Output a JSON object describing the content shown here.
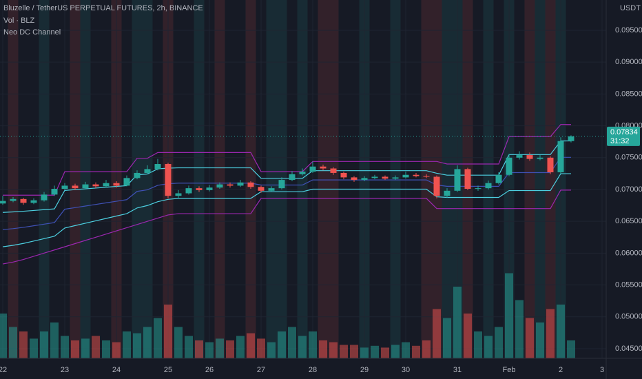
{
  "chart_data": {
    "type": "candlestick",
    "title": "Bluzelle / TetherUS PERPETUAL FUTURES, 2h, BINANCE",
    "indicators": [
      "Vol · BLZ",
      "Neo DC Channel"
    ],
    "y_axis_label": "USDT",
    "up_color": "#26a69a",
    "down_color": "#ef5350",
    "grid": true,
    "categories": [
      "22",
      null,
      null,
      null,
      null,
      null,
      "23",
      null,
      null,
      null,
      null,
      "24",
      null,
      null,
      null,
      null,
      "25",
      null,
      null,
      null,
      "26",
      null,
      null,
      null,
      null,
      "27",
      null,
      null,
      null,
      null,
      "28",
      null,
      null,
      null,
      null,
      "29",
      null,
      null,
      null,
      "30",
      null,
      null,
      null,
      null,
      "31",
      null,
      null,
      null,
      null,
      "Feb",
      null,
      null,
      null,
      null,
      "2",
      null,
      null,
      null,
      "3"
    ],
    "open": [
      0.0678,
      0.0682,
      0.0685,
      0.0679,
      0.0683,
      0.0692,
      0.0701,
      0.0706,
      0.0702,
      0.0708,
      0.0705,
      0.071,
      0.0706,
      0.0718,
      0.0726,
      0.0732,
      0.074,
      0.069,
      0.0694,
      0.0702,
      0.0699,
      0.0703,
      0.0708,
      0.0706,
      0.0711,
      0.0704,
      0.0698,
      0.0702,
      0.0715,
      0.0724,
      0.0728,
      0.0736,
      0.0733,
      0.0726,
      0.0719,
      0.0715,
      0.0718,
      0.072,
      0.0717,
      0.0719,
      0.0723,
      0.0721,
      0.072,
      0.069,
      0.0698,
      0.0732,
      0.0701,
      0.0702,
      0.071,
      0.0723,
      0.075,
      0.0754,
      0.0748,
      0.075,
      0.0727,
      0.0776,
      null,
      null,
      null
    ],
    "high": [
      0.069,
      0.0688,
      0.0687,
      0.0686,
      0.0696,
      0.0706,
      0.071,
      0.0709,
      0.0712,
      0.0711,
      0.0715,
      0.0713,
      0.0722,
      0.073,
      0.0738,
      0.0748,
      0.0742,
      0.0699,
      0.0706,
      0.0705,
      0.0707,
      0.0711,
      0.0711,
      0.0715,
      0.0713,
      0.0706,
      0.0705,
      0.0719,
      0.0729,
      0.0733,
      0.0744,
      0.0739,
      0.0735,
      0.0728,
      0.0721,
      0.0721,
      0.0723,
      0.0722,
      0.0722,
      0.0728,
      0.0726,
      0.0724,
      0.0722,
      0.0702,
      0.0738,
      0.0734,
      0.0706,
      0.0714,
      0.0727,
      0.0756,
      0.076,
      0.0758,
      0.0754,
      0.0752,
      0.0782,
      0.0785,
      null,
      null,
      null
    ],
    "low": [
      0.0676,
      0.068,
      0.0676,
      0.0677,
      0.0681,
      0.069,
      0.0699,
      0.0699,
      0.07,
      0.0702,
      0.0703,
      0.0703,
      0.0705,
      0.0716,
      0.0724,
      0.073,
      0.0686,
      0.0685,
      0.0692,
      0.0696,
      0.0697,
      0.0701,
      0.0703,
      0.0704,
      0.0701,
      0.0695,
      0.0696,
      0.07,
      0.0713,
      0.0722,
      0.0726,
      0.073,
      0.0723,
      0.0716,
      0.0712,
      0.0713,
      0.0716,
      0.0715,
      0.0715,
      0.0717,
      0.0719,
      0.0718,
      0.0686,
      0.0687,
      0.0696,
      0.0699,
      0.0698,
      0.07,
      0.0708,
      0.0721,
      0.0747,
      0.0745,
      0.0746,
      0.0724,
      0.0725,
      0.0774,
      null,
      null,
      null
    ],
    "close": [
      0.0682,
      0.0685,
      0.0679,
      0.0683,
      0.0692,
      0.0701,
      0.0706,
      0.0702,
      0.0708,
      0.0705,
      0.071,
      0.0706,
      0.0718,
      0.0726,
      0.0732,
      0.074,
      0.069,
      0.0694,
      0.0702,
      0.0699,
      0.0703,
      0.0708,
      0.0706,
      0.0711,
      0.0704,
      0.0698,
      0.0702,
      0.0715,
      0.0724,
      0.0728,
      0.0736,
      0.0733,
      0.0726,
      0.0719,
      0.0715,
      0.0718,
      0.072,
      0.0717,
      0.0719,
      0.0723,
      0.0721,
      0.072,
      0.069,
      0.0698,
      0.0732,
      0.0701,
      0.0702,
      0.071,
      0.0723,
      0.075,
      0.0754,
      0.0748,
      0.075,
      0.0727,
      0.0776,
      0.07834,
      null,
      null,
      null
    ],
    "volume": [
      50,
      35,
      30,
      22,
      30,
      40,
      25,
      20,
      22,
      25,
      20,
      18,
      30,
      28,
      35,
      45,
      60,
      35,
      25,
      20,
      18,
      22,
      20,
      25,
      28,
      22,
      18,
      30,
      35,
      25,
      30,
      20,
      18,
      15,
      15,
      12,
      14,
      12,
      15,
      18,
      14,
      20,
      55,
      45,
      80,
      50,
      30,
      25,
      35,
      95,
      65,
      45,
      40,
      55,
      60,
      20,
      null,
      null,
      null
    ],
    "vlim": [
      0,
      100
    ],
    "signals": [
      0,
      -1,
      0,
      0,
      1,
      0,
      0,
      -1,
      1,
      0,
      0,
      -1,
      0,
      1,
      1,
      0,
      -1,
      0,
      0,
      1,
      0,
      -1,
      0,
      0,
      -1,
      0,
      1,
      1,
      0,
      1,
      0,
      -1,
      -1,
      0,
      0,
      1,
      0,
      0,
      1,
      0,
      0,
      -1,
      -1,
      1,
      1,
      -1,
      0,
      1,
      0,
      1,
      0,
      -1,
      1,
      -1,
      1,
      0,
      null,
      null,
      null
    ],
    "lines": [
      {
        "color": "#9c27b0",
        "values": [
          0.0691,
          0.0691,
          0.0691,
          0.0691,
          0.0691,
          0.0691,
          0.0728,
          0.0728,
          0.0728,
          0.0728,
          0.0728,
          0.0728,
          0.0728,
          0.0749,
          0.0749,
          0.0758,
          0.0758,
          0.0758,
          0.0758,
          0.0758,
          0.0758,
          0.0758,
          0.0758,
          0.0758,
          0.0758,
          0.0728,
          0.0728,
          0.0728,
          0.0728,
          0.0728,
          0.0744,
          0.0744,
          0.0744,
          0.0744,
          0.0744,
          0.0744,
          0.0744,
          0.0744,
          0.0744,
          0.0744,
          0.0744,
          0.0744,
          0.0744,
          0.074,
          0.074,
          0.074,
          0.074,
          0.074,
          0.074,
          0.0783,
          0.0783,
          0.0783,
          0.0783,
          0.0783,
          0.0802,
          0.0802,
          null,
          null,
          null
        ]
      },
      {
        "color": "#4dd0e1",
        "values": [
          0.0664,
          0.06648,
          0.06658,
          0.0667,
          0.06683,
          0.06695,
          0.06985,
          0.06998,
          0.0701,
          0.07023,
          0.07035,
          0.07048,
          0.0706,
          0.0723,
          0.07243,
          0.07323,
          0.07335,
          0.0734,
          0.0734,
          0.0734,
          0.0734,
          0.0734,
          0.0734,
          0.0734,
          0.0734,
          0.07175,
          0.07175,
          0.07175,
          0.07175,
          0.07175,
          0.07295,
          0.07295,
          0.07295,
          0.07295,
          0.07295,
          0.07295,
          0.07295,
          0.07295,
          0.07295,
          0.07295,
          0.07295,
          0.07295,
          0.07255,
          0.07225,
          0.07225,
          0.07225,
          0.07225,
          0.07225,
          0.07225,
          0.07548,
          0.07548,
          0.07548,
          0.07548,
          0.07548,
          0.07763,
          0.07763,
          null,
          null,
          null
        ]
      },
      {
        "color": "#3f51b5",
        "values": [
          0.0637,
          0.06385,
          0.06405,
          0.0643,
          0.06455,
          0.0648,
          0.0669,
          0.06715,
          0.0674,
          0.06765,
          0.0679,
          0.06815,
          0.0684,
          0.0697,
          0.06995,
          0.07065,
          0.0709,
          0.071,
          0.071,
          0.071,
          0.071,
          0.071,
          0.071,
          0.071,
          0.071,
          0.0707,
          0.0707,
          0.0707,
          0.0707,
          0.0707,
          0.0715,
          0.0715,
          0.0715,
          0.0715,
          0.0715,
          0.0715,
          0.0715,
          0.0715,
          0.0715,
          0.0715,
          0.0715,
          0.0715,
          0.0707,
          0.0705,
          0.0705,
          0.0705,
          0.0705,
          0.0705,
          0.0705,
          0.07265,
          0.07265,
          0.07265,
          0.07265,
          0.07265,
          0.07505,
          0.07505,
          null,
          null,
          null
        ]
      },
      {
        "color": "#4dd0e1",
        "values": [
          0.061,
          0.06123,
          0.06153,
          0.0619,
          0.06228,
          0.06265,
          0.06395,
          0.06433,
          0.0647,
          0.06508,
          0.06545,
          0.06583,
          0.0662,
          0.0671,
          0.06748,
          0.06808,
          0.06845,
          0.0686,
          0.0686,
          0.0686,
          0.0686,
          0.0686,
          0.0686,
          0.0686,
          0.0686,
          0.06965,
          0.06965,
          0.06965,
          0.06965,
          0.06965,
          0.07005,
          0.07005,
          0.07005,
          0.07005,
          0.07005,
          0.07005,
          0.07005,
          0.07005,
          0.07005,
          0.07005,
          0.07005,
          0.07005,
          0.06885,
          0.06875,
          0.06875,
          0.06875,
          0.06875,
          0.06875,
          0.06875,
          0.06983,
          0.06983,
          0.06983,
          0.06983,
          0.06983,
          0.07248,
          0.07248,
          null,
          null,
          null
        ]
      },
      {
        "color": "#9c27b0",
        "values": [
          0.0583,
          0.0586,
          0.059,
          0.0595,
          0.06,
          0.0605,
          0.061,
          0.0615,
          0.062,
          0.0625,
          0.063,
          0.0635,
          0.064,
          0.0645,
          0.065,
          0.0655,
          0.066,
          0.0662,
          0.0662,
          0.0662,
          0.0662,
          0.0662,
          0.0662,
          0.0662,
          0.0662,
          0.0686,
          0.0686,
          0.0686,
          0.0686,
          0.0686,
          0.0686,
          0.0686,
          0.0686,
          0.0686,
          0.0686,
          0.0686,
          0.0686,
          0.0686,
          0.0686,
          0.0686,
          0.0686,
          0.0686,
          0.067,
          0.067,
          0.067,
          0.067,
          0.067,
          0.067,
          0.067,
          0.067,
          0.067,
          0.067,
          0.067,
          0.067,
          0.0699,
          0.0699,
          null,
          null,
          null
        ]
      }
    ],
    "ylim": [
      0.04348,
      0.09976
    ],
    "yticks": [
      {
        "value": 0.045,
        "label": "0.04500"
      },
      {
        "value": 0.05,
        "label": "0.05000"
      },
      {
        "value": 0.055,
        "label": "0.05500"
      },
      {
        "value": 0.06,
        "label": "0.06000"
      },
      {
        "value": 0.065,
        "label": "0.06500"
      },
      {
        "value": 0.07,
        "label": "0.07000"
      },
      {
        "value": 0.075,
        "label": "0.07500"
      },
      {
        "value": 0.08,
        "label": "0.08000"
      },
      {
        "value": 0.085,
        "label": "0.08500"
      },
      {
        "value": 0.09,
        "label": "0.09000"
      },
      {
        "value": 0.095,
        "label": "0.09500"
      }
    ],
    "last_price": {
      "value": 0.07834,
      "label": "0.07834",
      "countdown": "31:32"
    }
  }
}
